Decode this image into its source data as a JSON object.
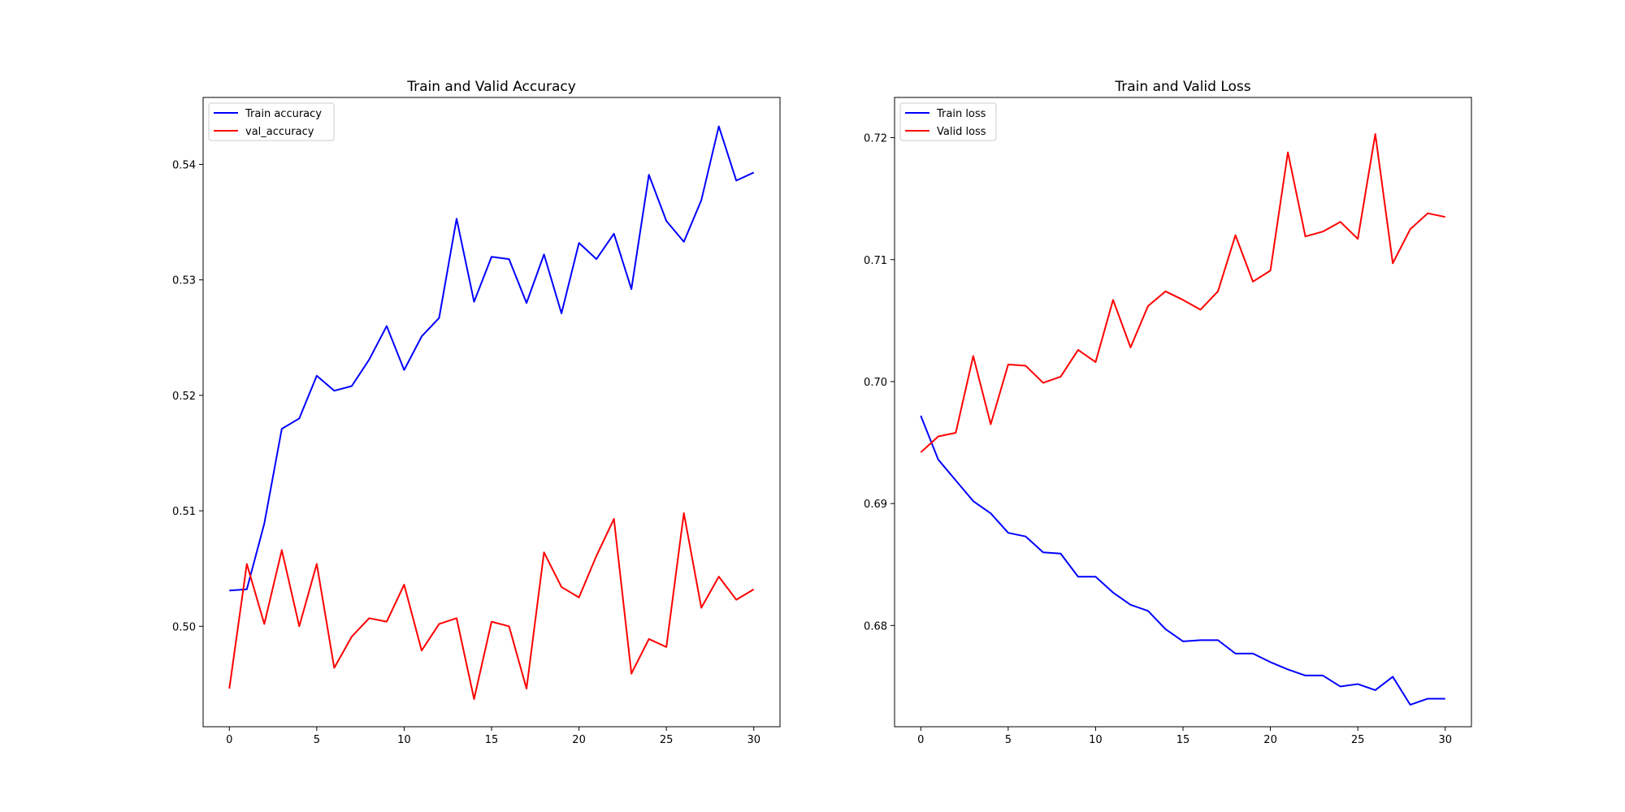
{
  "chart_data": [
    {
      "type": "line",
      "title": "Train and Valid Accuracy",
      "xlabel": "",
      "ylabel": "",
      "xlim": [
        -1.5,
        31.5
      ],
      "ylim": [
        0.4913,
        0.5458
      ],
      "x_ticks": [
        0,
        5,
        10,
        15,
        20,
        25,
        30
      ],
      "x_tick_labels": [
        "0",
        "5",
        "10",
        "15",
        "20",
        "25",
        "30"
      ],
      "y_ticks": [
        0.5,
        0.51,
        0.52,
        0.53,
        0.54
      ],
      "y_tick_labels": [
        "0.50",
        "0.51",
        "0.52",
        "0.53",
        "0.54"
      ],
      "grid": false,
      "legend_position": "top-left",
      "x": [
        0,
        1,
        2,
        3,
        4,
        5,
        6,
        7,
        8,
        9,
        10,
        11,
        12,
        13,
        14,
        15,
        16,
        17,
        18,
        19,
        20,
        21,
        22,
        23,
        24,
        25,
        26,
        27,
        28,
        29,
        30
      ],
      "series": [
        {
          "name": "Train accuracy",
          "color": "#0000ff",
          "values": [
            0.5031,
            0.5032,
            0.5089,
            0.5171,
            0.518,
            0.5217,
            0.5204,
            0.5208,
            0.5231,
            0.526,
            0.5222,
            0.5251,
            0.5267,
            0.5353,
            0.5281,
            0.532,
            0.5318,
            0.528,
            0.5322,
            0.5271,
            0.5332,
            0.5318,
            0.534,
            0.5292,
            0.5391,
            0.5351,
            0.5333,
            0.5369,
            0.5433,
            0.5386,
            0.5393
          ]
        },
        {
          "name": "val_accuracy",
          "color": "#ff0000",
          "values": [
            0.4946,
            0.5054,
            0.5002,
            0.5066,
            0.5,
            0.5054,
            0.4964,
            0.4991,
            0.5007,
            0.5004,
            0.5036,
            0.4979,
            0.5002,
            0.5007,
            0.4937,
            0.5004,
            0.5,
            0.4946,
            0.5064,
            0.5034,
            0.5025,
            0.5061,
            0.5093,
            0.4959,
            0.4989,
            0.4982,
            0.5098,
            0.5016,
            0.5043,
            0.5023,
            0.5032
          ]
        }
      ]
    },
    {
      "type": "line",
      "title": "Train and Valid Loss",
      "xlabel": "",
      "ylabel": "",
      "xlim": [
        -1.5,
        31.5
      ],
      "ylim": [
        0.6717,
        0.7233
      ],
      "x_ticks": [
        0,
        5,
        10,
        15,
        20,
        25,
        30
      ],
      "x_tick_labels": [
        "0",
        "5",
        "10",
        "15",
        "20",
        "25",
        "30"
      ],
      "y_ticks": [
        0.68,
        0.69,
        0.7,
        0.71,
        0.72
      ],
      "y_tick_labels": [
        "0.68",
        "0.69",
        "0.70",
        "0.71",
        "0.72"
      ],
      "grid": false,
      "legend_position": "top-left",
      "x": [
        0,
        1,
        2,
        3,
        4,
        5,
        6,
        7,
        8,
        9,
        10,
        11,
        12,
        13,
        14,
        15,
        16,
        17,
        18,
        19,
        20,
        21,
        22,
        23,
        24,
        25,
        26,
        27,
        28,
        29,
        30
      ],
      "series": [
        {
          "name": "Train loss",
          "color": "#0000ff",
          "values": [
            0.6972,
            0.6936,
            0.6919,
            0.6902,
            0.6892,
            0.6876,
            0.6873,
            0.686,
            0.6859,
            0.684,
            0.684,
            0.6827,
            0.6817,
            0.6812,
            0.6797,
            0.6787,
            0.6788,
            0.6788,
            0.6777,
            0.6777,
            0.677,
            0.6764,
            0.6759,
            0.6759,
            0.675,
            0.6752,
            0.6747,
            0.6758,
            0.6735,
            0.674,
            0.674
          ]
        },
        {
          "name": "Valid loss",
          "color": "#ff0000",
          "values": [
            0.6942,
            0.6955,
            0.6958,
            0.7021,
            0.6965,
            0.7014,
            0.7013,
            0.6999,
            0.7004,
            0.7026,
            0.7016,
            0.7067,
            0.7028,
            0.7062,
            0.7074,
            0.7067,
            0.7059,
            0.7074,
            0.712,
            0.7082,
            0.7091,
            0.7188,
            0.7119,
            0.7123,
            0.7131,
            0.7117,
            0.7203,
            0.7097,
            0.7125,
            0.7138,
            0.7135
          ]
        }
      ]
    }
  ]
}
